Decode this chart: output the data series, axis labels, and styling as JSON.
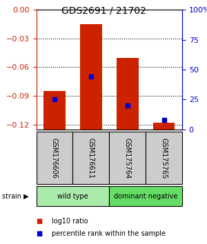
{
  "title": "GDS2691 / 21702",
  "samples": [
    "GSM176606",
    "GSM176611",
    "GSM175764",
    "GSM175765"
  ],
  "log10_values": [
    -0.085,
    -0.015,
    -0.05,
    -0.118
  ],
  "bar_bottom": -0.125,
  "percentile_values": [
    0.25,
    0.44,
    0.2,
    0.08
  ],
  "left_ylim": [
    -0.125,
    0.0
  ],
  "right_ylim": [
    0.0,
    1.0
  ],
  "left_yticks": [
    0,
    -0.03,
    -0.06,
    -0.09,
    -0.12
  ],
  "right_yticks": [
    0,
    0.25,
    0.5,
    0.75,
    1.0
  ],
  "right_yticklabels": [
    "0",
    "25",
    "50",
    "75",
    "100%"
  ],
  "bar_color": "#cc2200",
  "dot_color": "#0000cc",
  "strain_groups": [
    {
      "label": "wild type",
      "samples": [
        0,
        1
      ],
      "color": "#aaeaaa"
    },
    {
      "label": "dominant negative",
      "samples": [
        2,
        3
      ],
      "color": "#66dd66"
    }
  ],
  "legend_red": "log10 ratio",
  "legend_blue": "percentile rank within the sample",
  "strain_label": "strain",
  "sample_box_color": "#cccccc",
  "bar_width": 0.6
}
